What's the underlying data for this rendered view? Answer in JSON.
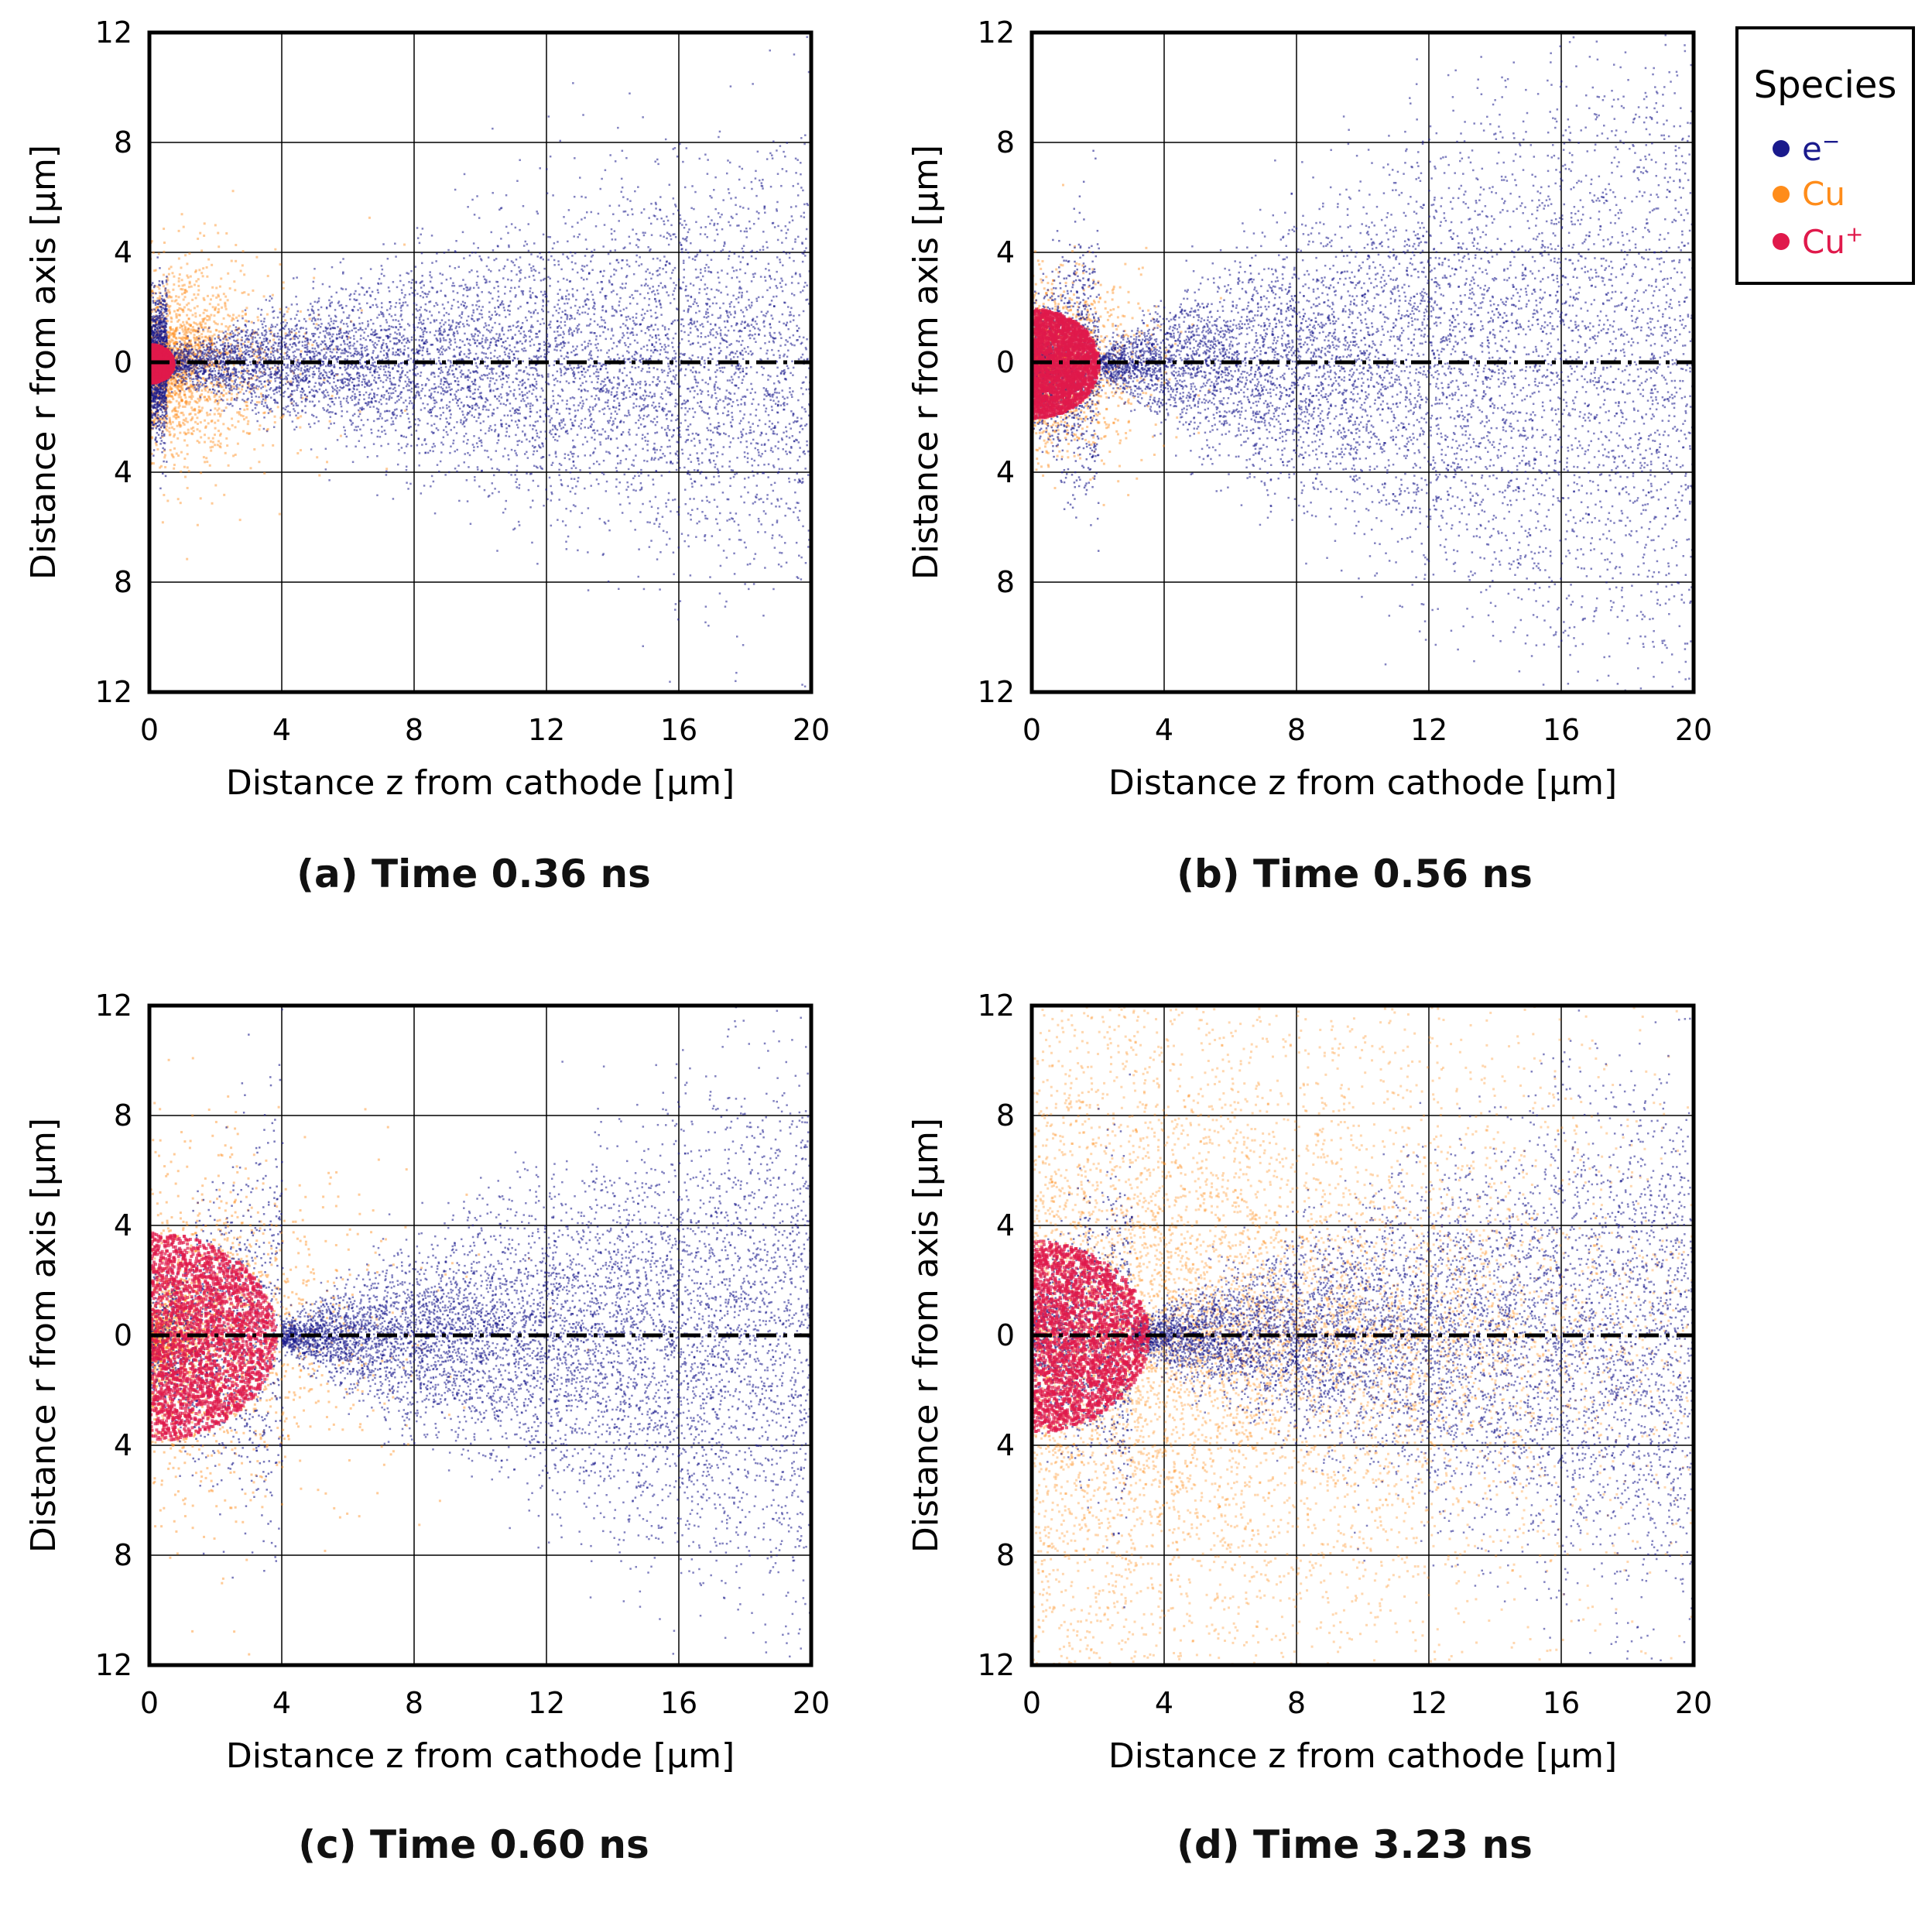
{
  "legend": {
    "title": "Species",
    "entries": [
      {
        "label": "e",
        "sup": "−",
        "color": "#1a1a8c"
      },
      {
        "label": "Cu",
        "sup": "",
        "color": "#ff8c1a"
      },
      {
        "label": "Cu",
        "sup": "+",
        "color": "#e0194b"
      }
    ]
  },
  "chart_data": [
    {
      "type": "scatter",
      "panel": "a",
      "caption": "(a) Time 0.36 ns",
      "xlabel": "Distance z from cathode [μm]",
      "ylabel": "Distance r from axis [μm]",
      "xlim": [
        0,
        20
      ],
      "ylim": [
        -12,
        12
      ],
      "xticks": [
        "0",
        "4",
        "8",
        "12",
        "16",
        "20"
      ],
      "yticks": [
        "12",
        "8",
        "4",
        "0",
        "4",
        "8",
        "12"
      ],
      "grid": true,
      "axis_line": "dash-dot at r = 0",
      "species": {
        "e−": {
          "cone_start_z": 0.5,
          "spread_r_at_z20": 7
        },
        "Cu": {
          "cloud_radius": 3.5
        },
        "Cu+": {
          "cloud_radius": 0.7
        }
      }
    },
    {
      "type": "scatter",
      "panel": "b",
      "caption": "(b) Time 0.56 ns",
      "xlabel": "Distance z from cathode [μm]",
      "ylabel": "Distance r from axis [μm]",
      "xlim": [
        0,
        20
      ],
      "ylim": [
        -12,
        12
      ],
      "xticks": [
        "0",
        "4",
        "8",
        "12",
        "16",
        "20"
      ],
      "yticks": [
        "12",
        "8",
        "4",
        "0",
        "4",
        "8",
        "12"
      ],
      "grid": true,
      "axis_line": "dash-dot at r = 0",
      "species": {
        "e−": {
          "cone_start_z": 2,
          "spread_r_at_z20": 12
        },
        "Cu": {
          "cloud_radius": 3
        },
        "Cu+": {
          "cloud_radius": 2
        }
      }
    },
    {
      "type": "scatter",
      "panel": "c",
      "caption": "(c) Time 0.60 ns",
      "xlabel": "Distance z from cathode [μm]",
      "ylabel": "Distance r from axis [μm]",
      "xlim": [
        0,
        20
      ],
      "ylim": [
        -12,
        12
      ],
      "xticks": [
        "0",
        "4",
        "8",
        "12",
        "16",
        "20"
      ],
      "yticks": [
        "12",
        "8",
        "4",
        "0",
        "4",
        "8",
        "12"
      ],
      "grid": true,
      "axis_line": "dash-dot at r = 0",
      "species": {
        "e−": {
          "cone_start_z": 4,
          "spread_r_at_z20": 9
        },
        "Cu": {
          "cloud_radius": 6
        },
        "Cu+": {
          "cloud_radius": 3.8
        }
      }
    },
    {
      "type": "scatter",
      "panel": "d",
      "caption": "(d) Time 3.23 ns",
      "xlabel": "Distance z from cathode [μm]",
      "ylabel": "Distance r from axis [μm]",
      "xlim": [
        0,
        20
      ],
      "ylim": [
        -12,
        12
      ],
      "xticks": [
        "0",
        "4",
        "8",
        "12",
        "16",
        "20"
      ],
      "yticks": [
        "12",
        "8",
        "4",
        "0",
        "4",
        "8",
        "12"
      ],
      "grid": true,
      "axis_line": "dash-dot at r = 0",
      "species": {
        "e−": {
          "cone_start_z": 3,
          "spread_r_at_z20": 9
        },
        "Cu": {
          "cloud_radius": 12
        },
        "Cu+": {
          "cloud_radius": 3.5
        }
      }
    }
  ]
}
